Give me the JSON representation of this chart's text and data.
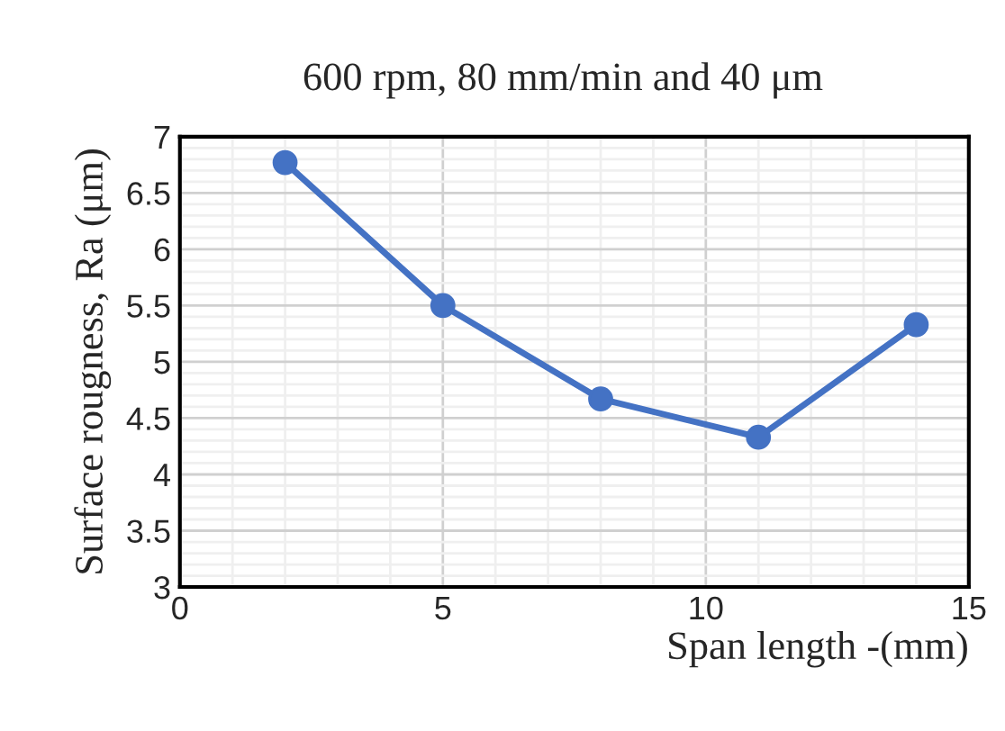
{
  "chart_data": {
    "type": "line",
    "title": "600 rpm, 80 mm/min and 40 μm",
    "xlabel": "Span length -(mm)",
    "ylabel": "Surface rougness, Ra (μm)",
    "x": [
      2,
      5,
      8,
      11,
      14
    ],
    "series": [
      {
        "color": "#4472c4",
        "values": [
          6.77,
          5.5,
          4.67,
          4.33,
          5.33
        ]
      }
    ],
    "xlim": [
      0,
      15
    ],
    "xticks": [
      0,
      5,
      10,
      15
    ],
    "ylim": [
      3,
      7
    ],
    "yticks": [
      3,
      3.5,
      4,
      4.5,
      5,
      5.5,
      6,
      6.5,
      7
    ],
    "grid": true,
    "marker": "circle",
    "line_style": "solid"
  }
}
